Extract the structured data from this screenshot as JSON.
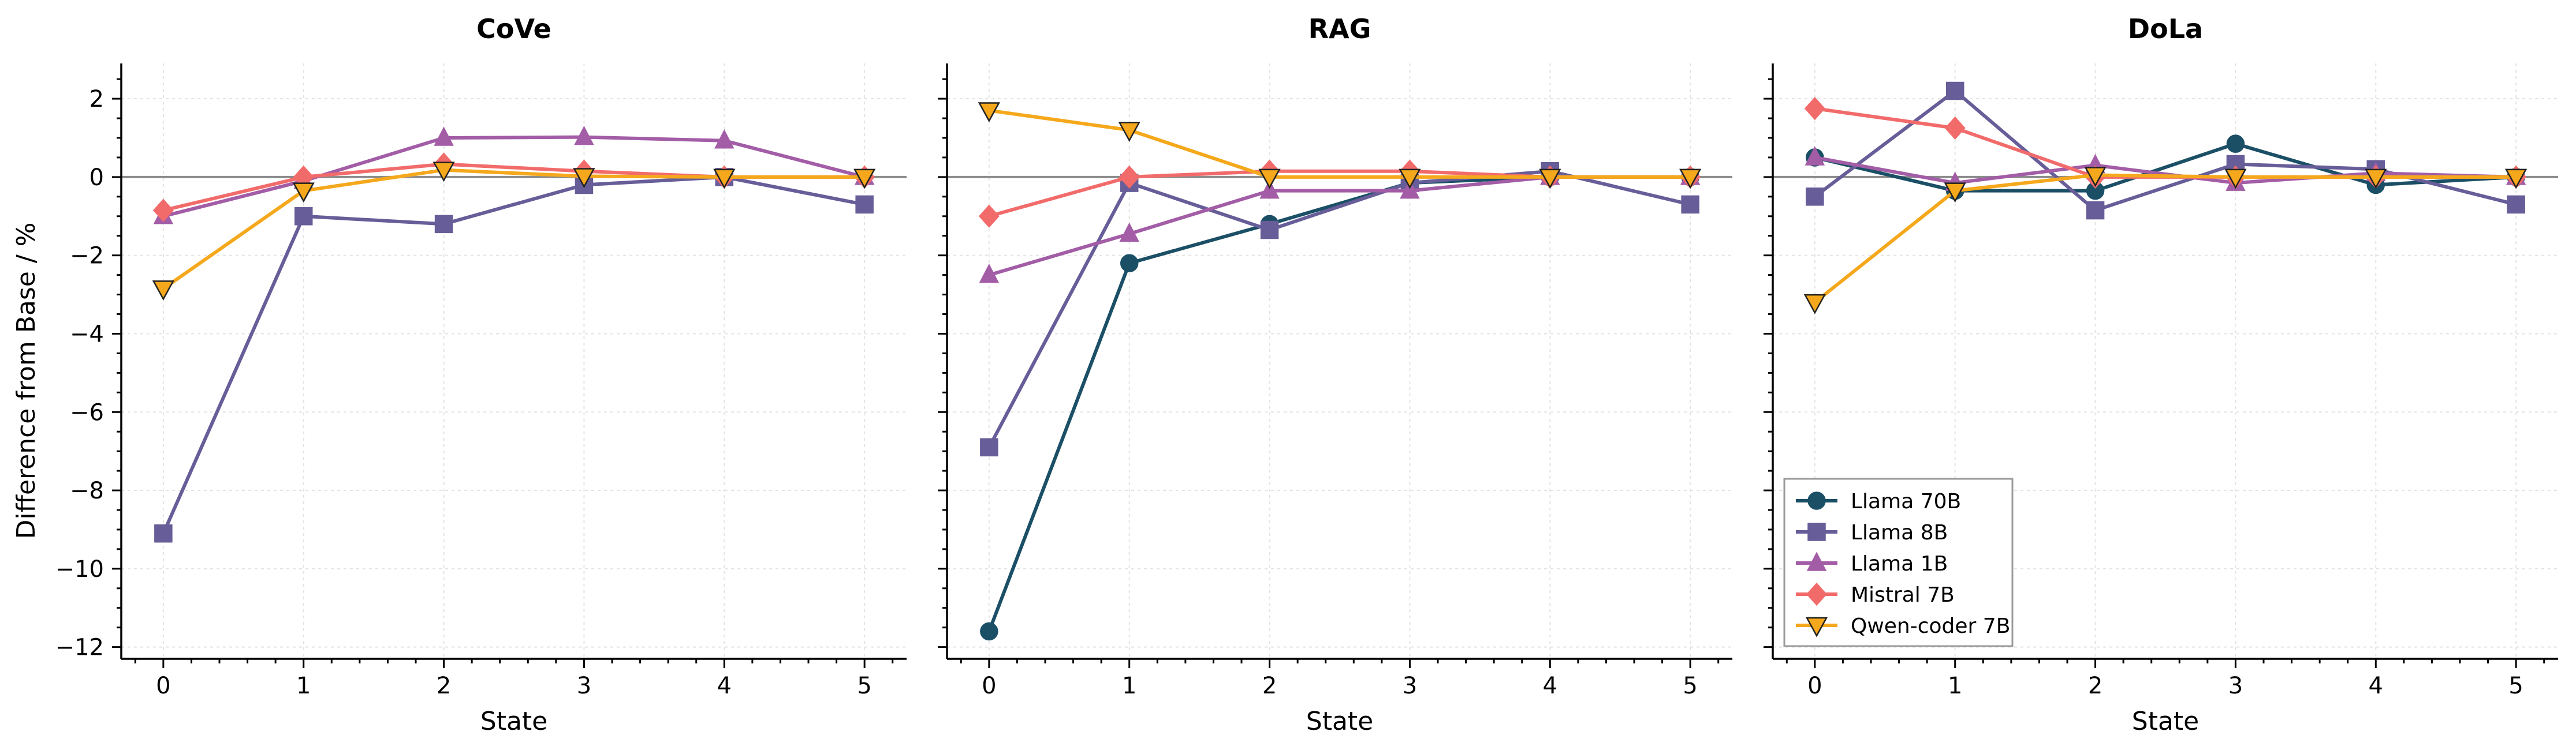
{
  "chart_data": {
    "type": "line",
    "ylabel": "Difference from Base / %",
    "ylim": [
      -12.3,
      2.9
    ],
    "yticks": [
      2,
      0,
      -2,
      -4,
      -6,
      -8,
      -10,
      -12
    ],
    "ytick_labels": [
      "2",
      "0",
      "−2",
      "−4",
      "−6",
      "−8",
      "−10",
      "−12"
    ],
    "xlim": [
      -0.3,
      5.3
    ],
    "grid": true,
    "legend_location": "lower-left of DoLa panel",
    "series_styles": [
      {
        "name": "Llama 70B",
        "color": "#1b4f66",
        "marker": "circle"
      },
      {
        "name": "Llama 8B",
        "color": "#675d98",
        "marker": "square"
      },
      {
        "name": "Llama 1B",
        "color": "#a25da6",
        "marker": "triangle-up"
      },
      {
        "name": "Mistral 7B",
        "color": "#f26b6b",
        "marker": "diamond"
      },
      {
        "name": "Qwen-coder 7B",
        "color": "#f5a81c",
        "marker": "triangle-down"
      }
    ],
    "panels": [
      {
        "title": "CoVe",
        "xlabel": "State",
        "x": [
          0,
          1,
          2,
          3,
          4,
          5
        ],
        "x_tick_labels": [
          "0",
          "1",
          "2",
          "3",
          "4",
          "5"
        ],
        "series": [
          {
            "name": "Llama 8B",
            "values": [
              -9.1,
              -1.0,
              -1.2,
              -0.2,
              0.0,
              -0.7
            ]
          },
          {
            "name": "Llama 1B",
            "values": [
              -1.0,
              -0.1,
              1.0,
              1.02,
              0.93,
              0.0
            ]
          },
          {
            "name": "Mistral 7B",
            "values": [
              -0.85,
              0.0,
              0.33,
              0.15,
              0.0,
              0.0
            ]
          },
          {
            "name": "Qwen-coder 7B",
            "values": [
              -2.85,
              -0.35,
              0.18,
              0.02,
              0.0,
              0.0
            ]
          }
        ]
      },
      {
        "title": "RAG",
        "xlabel": "State",
        "x": [
          0,
          1,
          2,
          3,
          4,
          5
        ],
        "x_tick_labels": [
          "0",
          "1",
          "2",
          "3",
          "4",
          "5"
        ],
        "series": [
          {
            "name": "Llama 70B",
            "values": [
              -11.6,
              -2.2,
              -1.2,
              -0.15,
              0.0,
              0.0
            ]
          },
          {
            "name": "Llama 8B",
            "values": [
              -6.9,
              -0.15,
              -1.35,
              -0.15,
              0.15,
              -0.7
            ]
          },
          {
            "name": "Llama 1B",
            "values": [
              -2.5,
              -1.45,
              -0.35,
              -0.35,
              0.0,
              0.0
            ]
          },
          {
            "name": "Mistral 7B",
            "values": [
              -1.0,
              0.0,
              0.15,
              0.15,
              0.0,
              0.0
            ]
          },
          {
            "name": "Qwen-coder 7B",
            "values": [
              1.7,
              1.2,
              0.0,
              0.0,
              0.0,
              0.0
            ]
          }
        ]
      },
      {
        "title": "DoLa",
        "xlabel": "State",
        "x": [
          0,
          1,
          2,
          3,
          4,
          5
        ],
        "x_tick_labels": [
          "0",
          "1",
          "2",
          "3",
          "4",
          "5"
        ],
        "series": [
          {
            "name": "Llama 70B",
            "values": [
              0.5,
              -0.35,
              -0.35,
              0.85,
              -0.2,
              0.0
            ]
          },
          {
            "name": "Llama 8B",
            "values": [
              -0.5,
              2.2,
              -0.85,
              0.33,
              0.2,
              -0.7
            ]
          },
          {
            "name": "Llama 1B",
            "values": [
              0.5,
              -0.15,
              0.3,
              -0.15,
              0.1,
              0.0
            ]
          },
          {
            "name": "Mistral 7B",
            "values": [
              1.75,
              1.25,
              0.0,
              0.0,
              0.0,
              0.0
            ]
          },
          {
            "name": "Qwen-coder 7B",
            "values": [
              -3.2,
              -0.35,
              0.05,
              0.0,
              0.0,
              0.0
            ]
          }
        ]
      }
    ],
    "legend": [
      "Llama 70B",
      "Llama 8B",
      "Llama 1B",
      "Mistral 7B",
      "Qwen-coder 7B"
    ]
  }
}
